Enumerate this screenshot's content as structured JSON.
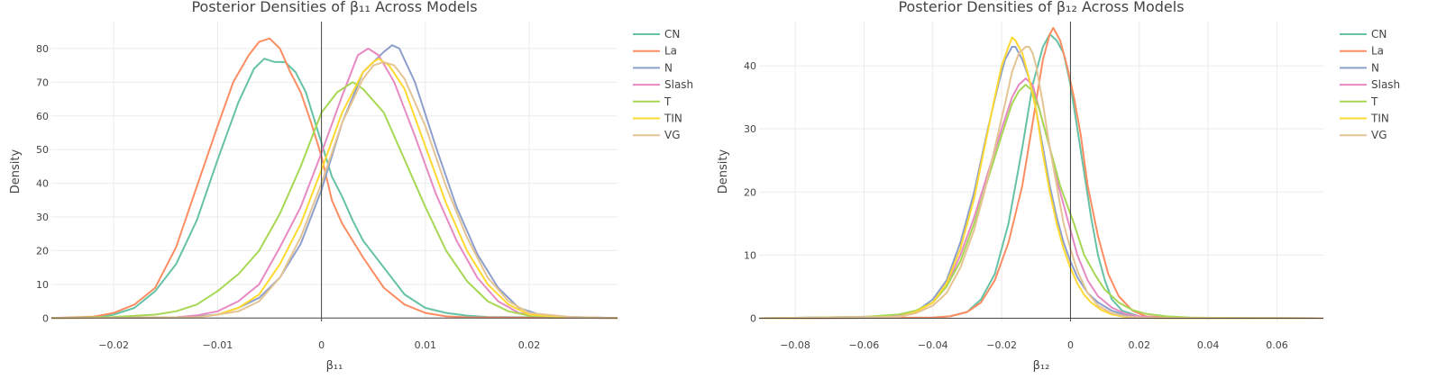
{
  "chart_data": [
    {
      "type": "line",
      "title": "Posterior Densities of β₁₁ Across Models",
      "xlabel": "β₁₁",
      "ylabel": "Density",
      "xlim": [
        -0.026,
        0.0285
      ],
      "ylim": [
        -1,
        88
      ],
      "xticks": [
        -0.02,
        -0.01,
        0,
        0.01,
        0.02
      ],
      "xtick_labels": [
        "−0.02",
        "−0.01",
        "0",
        "0.01",
        "0.02"
      ],
      "yticks": [
        0,
        10,
        20,
        30,
        40,
        50,
        60,
        70,
        80
      ],
      "ytick_labels": [
        "0",
        "10",
        "20",
        "30",
        "40",
        "50",
        "60",
        "70",
        "80"
      ],
      "grid": true,
      "legend_position": "right",
      "series": [
        {
          "name": "CN",
          "color": "#66c2a5",
          "x": [
            -0.026,
            -0.022,
            -0.02,
            -0.018,
            -0.016,
            -0.014,
            -0.012,
            -0.01,
            -0.008,
            -0.0065,
            -0.0055,
            -0.0045,
            -0.0035,
            -0.0025,
            -0.0015,
            0,
            0.001,
            0.002,
            0.003,
            0.004,
            0.006,
            0.008,
            0.01,
            0.012,
            0.014,
            0.016,
            0.0285
          ],
          "y": [
            0,
            0.2,
            1,
            3,
            8,
            16,
            29,
            47,
            64,
            74,
            77,
            76,
            76,
            73,
            67,
            52,
            42,
            36,
            29,
            23,
            15,
            7,
            3,
            1.5,
            0.7,
            0.3,
            0
          ]
        },
        {
          "name": "La",
          "color": "#fc8d62",
          "x": [
            -0.026,
            -0.022,
            -0.02,
            -0.018,
            -0.016,
            -0.014,
            -0.012,
            -0.01,
            -0.0085,
            -0.007,
            -0.006,
            -0.005,
            -0.004,
            -0.003,
            -0.002,
            -0.001,
            0,
            0.001,
            0.002,
            0.004,
            0.006,
            0.008,
            0.01,
            0.012,
            0.014,
            0.0285
          ],
          "y": [
            0,
            0.4,
            1.5,
            4,
            9,
            21,
            39,
            57,
            70,
            78,
            82,
            83,
            80,
            73,
            67,
            58,
            48,
            35,
            28,
            18,
            9,
            4,
            1.5,
            0.5,
            0.2,
            0
          ]
        },
        {
          "name": "N",
          "color": "#8da0cb",
          "x": [
            -0.026,
            -0.014,
            -0.012,
            -0.01,
            -0.008,
            -0.006,
            -0.004,
            -0.002,
            0,
            0.002,
            0.004,
            0.006,
            0.0068,
            0.0075,
            0.009,
            0.011,
            0.013,
            0.015,
            0.017,
            0.019,
            0.021,
            0.024,
            0.0285
          ],
          "y": [
            0,
            0.2,
            0.5,
            1,
            3,
            6,
            12,
            22,
            38,
            58,
            73,
            79,
            81,
            80,
            70,
            51,
            33,
            19,
            9,
            3,
            1,
            0.3,
            0
          ]
        },
        {
          "name": "Slash",
          "color": "#e78ac3",
          "x": [
            -0.026,
            -0.014,
            -0.012,
            -0.01,
            -0.008,
            -0.006,
            -0.004,
            -0.002,
            0,
            0.002,
            0.0035,
            0.0045,
            0.0055,
            0.007,
            0.009,
            0.011,
            0.013,
            0.015,
            0.017,
            0.019,
            0.021,
            0.024,
            0.0285
          ],
          "y": [
            0,
            0.2,
            0.8,
            2,
            5,
            10,
            21,
            33,
            49,
            66,
            78,
            80,
            78,
            70,
            54,
            37,
            23,
            12,
            5,
            1.5,
            0.5,
            0.1,
            0
          ]
        },
        {
          "name": "T",
          "color": "#a6d854",
          "x": [
            -0.026,
            -0.02,
            -0.016,
            -0.014,
            -0.012,
            -0.01,
            -0.008,
            -0.006,
            -0.004,
            -0.002,
            0,
            0.0015,
            0.003,
            0.004,
            0.006,
            0.008,
            0.01,
            0.012,
            0.014,
            0.016,
            0.018,
            0.02,
            0.024,
            0.0285
          ],
          "y": [
            0,
            0.3,
            1,
            2,
            4,
            8,
            13,
            20,
            31,
            45,
            61,
            67,
            70,
            68,
            61,
            47,
            33,
            20,
            11,
            5,
            2,
            0.7,
            0.2,
            0
          ]
        },
        {
          "name": "TIN",
          "color": "#ffd92f",
          "x": [
            -0.026,
            -0.012,
            -0.01,
            -0.008,
            -0.006,
            -0.004,
            -0.002,
            0,
            0.002,
            0.004,
            0.005,
            0.0055,
            0.0065,
            0.008,
            0.01,
            0.012,
            0.014,
            0.016,
            0.018,
            0.02,
            0.024,
            0.0285
          ],
          "y": [
            0,
            0.2,
            1,
            3,
            7,
            16,
            28,
            44,
            61,
            73,
            76,
            77,
            75,
            68,
            51,
            34,
            20,
            10,
            4,
            1,
            0.2,
            0
          ]
        },
        {
          "name": "VG",
          "color": "#e5c494",
          "x": [
            -0.026,
            -0.012,
            -0.01,
            -0.008,
            -0.006,
            -0.004,
            -0.002,
            0,
            0.002,
            0.004,
            0.005,
            0.006,
            0.007,
            0.008,
            0.01,
            0.012,
            0.014,
            0.016,
            0.018,
            0.02,
            0.024,
            0.0285
          ],
          "y": [
            0,
            0.2,
            1,
            2,
            5,
            12,
            24,
            40,
            58,
            71,
            75,
            76,
            75,
            71,
            57,
            39,
            24,
            12,
            5,
            1.5,
            0.3,
            0
          ]
        }
      ]
    },
    {
      "type": "line",
      "title": "Posterior Densities of β₁₂ Across Models",
      "xlabel": "β₁₂",
      "ylabel": "Density",
      "xlim": [
        -0.0905,
        0.0735
      ],
      "ylim": [
        -0.5,
        47
      ],
      "xticks": [
        -0.08,
        -0.06,
        -0.04,
        -0.02,
        0,
        0.02,
        0.04,
        0.06
      ],
      "xtick_labels": [
        "−0.08",
        "−0.06",
        "−0.04",
        "−0.02",
        "0",
        "0.02",
        "0.04",
        "0.06"
      ],
      "yticks": [
        0,
        10,
        20,
        30,
        40
      ],
      "ytick_labels": [
        "0",
        "10",
        "20",
        "30",
        "40"
      ],
      "grid": true,
      "legend_position": "right",
      "series": [
        {
          "name": "CN",
          "color": "#66c2a5",
          "x": [
            -0.0905,
            -0.04,
            -0.035,
            -0.03,
            -0.026,
            -0.022,
            -0.018,
            -0.014,
            -0.011,
            -0.008,
            -0.006,
            -0.004,
            -0.002,
            0,
            0.002,
            0.004,
            0.006,
            0.008,
            0.01,
            0.012,
            0.015,
            0.02,
            0.03,
            0.0735
          ],
          "y": [
            0,
            0.1,
            0.3,
            1,
            3,
            7,
            15,
            27,
            37,
            43,
            45,
            44,
            42,
            37,
            30,
            23,
            16,
            10,
            6,
            3,
            1.2,
            0.3,
            0.05,
            0
          ]
        },
        {
          "name": "La",
          "color": "#fc8d62",
          "x": [
            -0.0905,
            -0.04,
            -0.035,
            -0.03,
            -0.026,
            -0.022,
            -0.018,
            -0.014,
            -0.011,
            -0.008,
            -0.006,
            -0.005,
            -0.003,
            -0.001,
            0.001,
            0.003,
            0.005,
            0.008,
            0.011,
            0.014,
            0.018,
            0.022,
            0.03,
            0.0735
          ],
          "y": [
            0,
            0.1,
            0.3,
            1,
            2.5,
            6,
            12,
            21,
            31,
            41,
            45,
            46,
            44,
            40,
            35,
            29,
            21,
            13,
            7,
            3.5,
            1.2,
            0.3,
            0.05,
            0
          ]
        },
        {
          "name": "N",
          "color": "#8da0cb",
          "x": [
            -0.0905,
            -0.05,
            -0.045,
            -0.04,
            -0.036,
            -0.032,
            -0.028,
            -0.024,
            -0.021,
            -0.019,
            -0.017,
            -0.016,
            -0.014,
            -0.012,
            -0.01,
            -0.008,
            -0.006,
            -0.004,
            -0.002,
            0,
            0.002,
            0.005,
            0.008,
            0.012,
            0.016,
            0.02,
            0.025,
            0.0735
          ],
          "y": [
            0,
            0.3,
            1,
            3,
            6,
            12,
            20,
            30,
            37,
            41,
            43,
            43,
            41,
            38,
            33,
            27,
            21,
            16,
            12,
            9,
            6.5,
            4,
            2.5,
            1.2,
            0.5,
            0.2,
            0.05,
            0
          ]
        },
        {
          "name": "Slash",
          "color": "#e78ac3",
          "x": [
            -0.0905,
            -0.05,
            -0.045,
            -0.04,
            -0.036,
            -0.032,
            -0.028,
            -0.024,
            -0.02,
            -0.017,
            -0.015,
            -0.013,
            -0.011,
            -0.009,
            -0.006,
            -0.004,
            -0.002,
            0,
            0.002,
            0.005,
            0.008,
            0.012,
            0.016,
            0.02,
            0.025,
            0.0735
          ],
          "y": [
            0,
            0.3,
            1,
            2.5,
            5,
            10,
            16,
            23,
            30,
            35,
            37,
            38,
            37,
            33,
            27,
            22,
            18,
            14,
            10,
            6,
            3.5,
            1.7,
            0.7,
            0.3,
            0.1,
            0
          ]
        },
        {
          "name": "T",
          "color": "#a6d854",
          "x": [
            -0.0905,
            -0.06,
            -0.05,
            -0.045,
            -0.04,
            -0.036,
            -0.032,
            -0.028,
            -0.024,
            -0.02,
            -0.017,
            -0.015,
            -0.013,
            -0.011,
            -0.009,
            -0.007,
            -0.005,
            -0.003,
            -0.001,
            0.001,
            0.004,
            0.007,
            0.01,
            0.014,
            0.018,
            0.022,
            0.028,
            0.035,
            0.045,
            0.0735
          ],
          "y": [
            0,
            0.2,
            0.6,
            1.2,
            2.5,
            5,
            9,
            15,
            22,
            29,
            34,
            36,
            37,
            36,
            33,
            29,
            25,
            21,
            18,
            15,
            10,
            7,
            4.5,
            2.5,
            1.3,
            0.7,
            0.3,
            0.1,
            0.05,
            0
          ]
        },
        {
          "name": "TIN",
          "color": "#ffd92f",
          "x": [
            -0.0905,
            -0.05,
            -0.045,
            -0.04,
            -0.036,
            -0.032,
            -0.028,
            -0.025,
            -0.022,
            -0.02,
            -0.018,
            -0.017,
            -0.016,
            -0.014,
            -0.012,
            -0.01,
            -0.008,
            -0.006,
            -0.004,
            -0.002,
            0,
            0.002,
            0.004,
            0.006,
            0.009,
            0.012,
            0.016,
            0.02,
            0.025,
            0.0735
          ],
          "y": [
            0,
            0.2,
            1,
            2.5,
            5.5,
            11,
            19,
            27,
            35,
            40,
            43,
            44.5,
            44,
            42,
            38,
            33,
            26,
            20,
            15,
            11,
            8,
            5.5,
            3.7,
            2.5,
            1.3,
            0.6,
            0.2,
            0.08,
            0.03,
            0
          ]
        },
        {
          "name": "VG",
          "color": "#e5c494",
          "x": [
            -0.0905,
            -0.05,
            -0.045,
            -0.04,
            -0.036,
            -0.032,
            -0.028,
            -0.025,
            -0.022,
            -0.019,
            -0.017,
            -0.015,
            -0.013,
            -0.012,
            -0.011,
            -0.01,
            -0.008,
            -0.006,
            -0.004,
            -0.002,
            0,
            0.002,
            0.005,
            0.008,
            0.012,
            0.016,
            0.02,
            0.025,
            0.0735
          ],
          "y": [
            0,
            0.2,
            0.8,
            2,
            4,
            8,
            14,
            20,
            27,
            34,
            39,
            42,
            43,
            43,
            42,
            40,
            34,
            27,
            21,
            15,
            11,
            7.5,
            4,
            2,
            0.8,
            0.3,
            0.1,
            0.03,
            0
          ]
        }
      ]
    }
  ]
}
